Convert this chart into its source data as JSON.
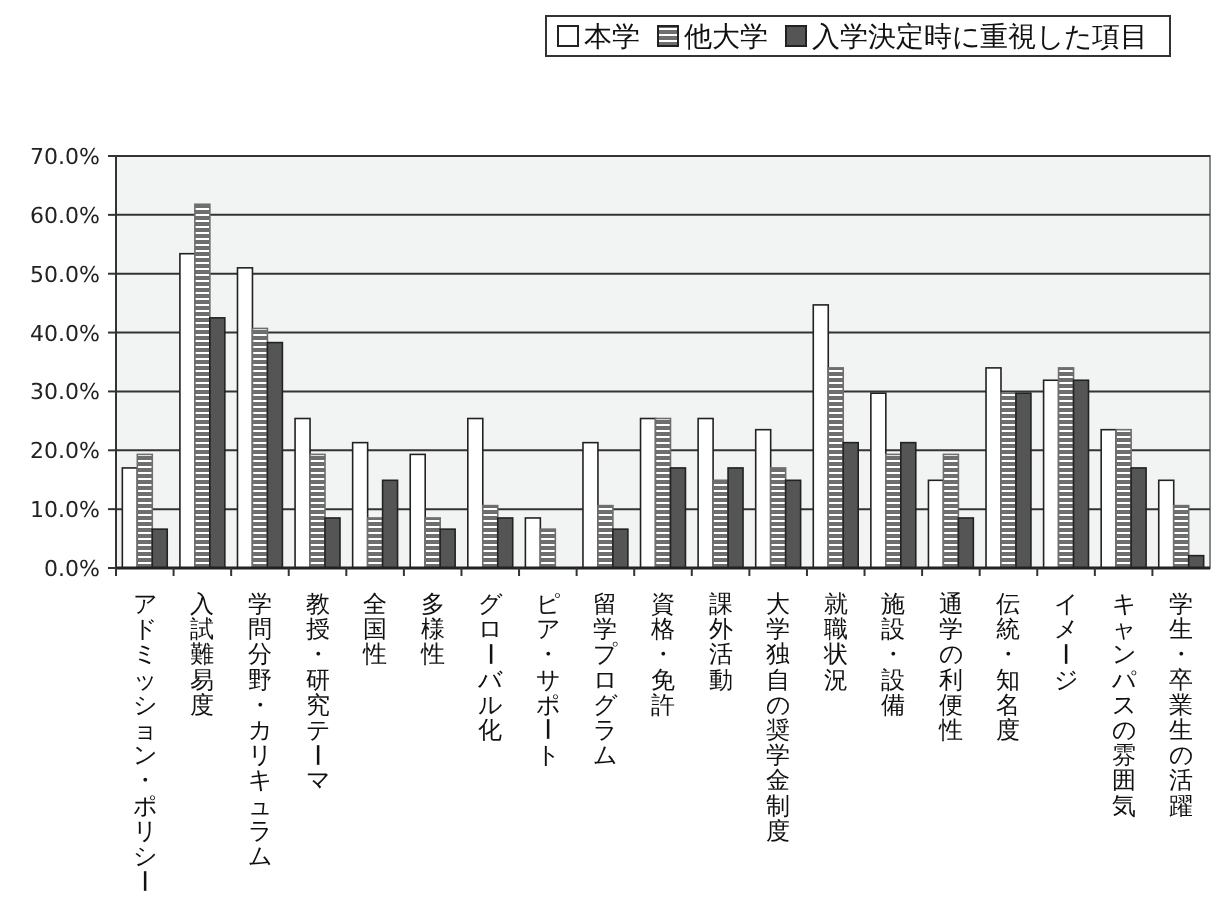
{
  "chart_data": {
    "type": "bar",
    "categories": [
      "アドミッション・ポリシー",
      "入試難易度",
      "学問分野・カリキュラム",
      "教授・研究テーマ",
      "全国性",
      "多様性",
      "グローバル化",
      "ピア・サポート",
      "留学プログラム",
      "資格・免許",
      "課外活動",
      "大学独自の奨学金制度",
      "就職状況",
      "施設・設備",
      "通学の利便性",
      "伝統・知名度",
      "イメージ",
      "キャンパスの雰囲気",
      "学生・卒業生の活躍"
    ],
    "series": [
      {
        "name": "本学",
        "color": "#ffffff",
        "values": [
          17,
          53.4,
          51,
          25.4,
          21.3,
          19.3,
          25.4,
          8.5,
          21.3,
          25.4,
          25.4,
          23.5,
          44.7,
          29.7,
          14.9,
          34,
          31.9,
          23.5,
          14.9
        ]
      },
      {
        "name": "他大学",
        "color": "#6e6e6e",
        "values": [
          19.3,
          61.8,
          40.7,
          19.3,
          8.5,
          8.5,
          10.6,
          6.6,
          10.6,
          25.4,
          14.9,
          17,
          34,
          19.3,
          19.3,
          29.7,
          34,
          23.5,
          10.6
        ]
      },
      {
        "name": "入学決定時に重視した項目",
        "color": "#555555",
        "values": [
          6.6,
          42.5,
          38.3,
          8.5,
          14.9,
          6.6,
          8.5,
          0,
          6.6,
          17,
          17,
          14.9,
          21.3,
          21.3,
          8.5,
          29.7,
          31.9,
          17,
          2.1
        ]
      }
    ],
    "ylim": [
      0,
      70
    ],
    "yticks": [
      {
        "value": 0,
        "label": "0.0%"
      },
      {
        "value": 10,
        "label": "10.0%"
      },
      {
        "value": 20,
        "label": "20.0%"
      },
      {
        "value": 30,
        "label": "30.0%"
      },
      {
        "value": 40,
        "label": "40.0%"
      },
      {
        "value": 50,
        "label": "50.0%"
      },
      {
        "value": 60,
        "label": "60.0%"
      },
      {
        "value": 70,
        "label": "70.0%"
      }
    ],
    "grid": "y",
    "legend": "top"
  }
}
